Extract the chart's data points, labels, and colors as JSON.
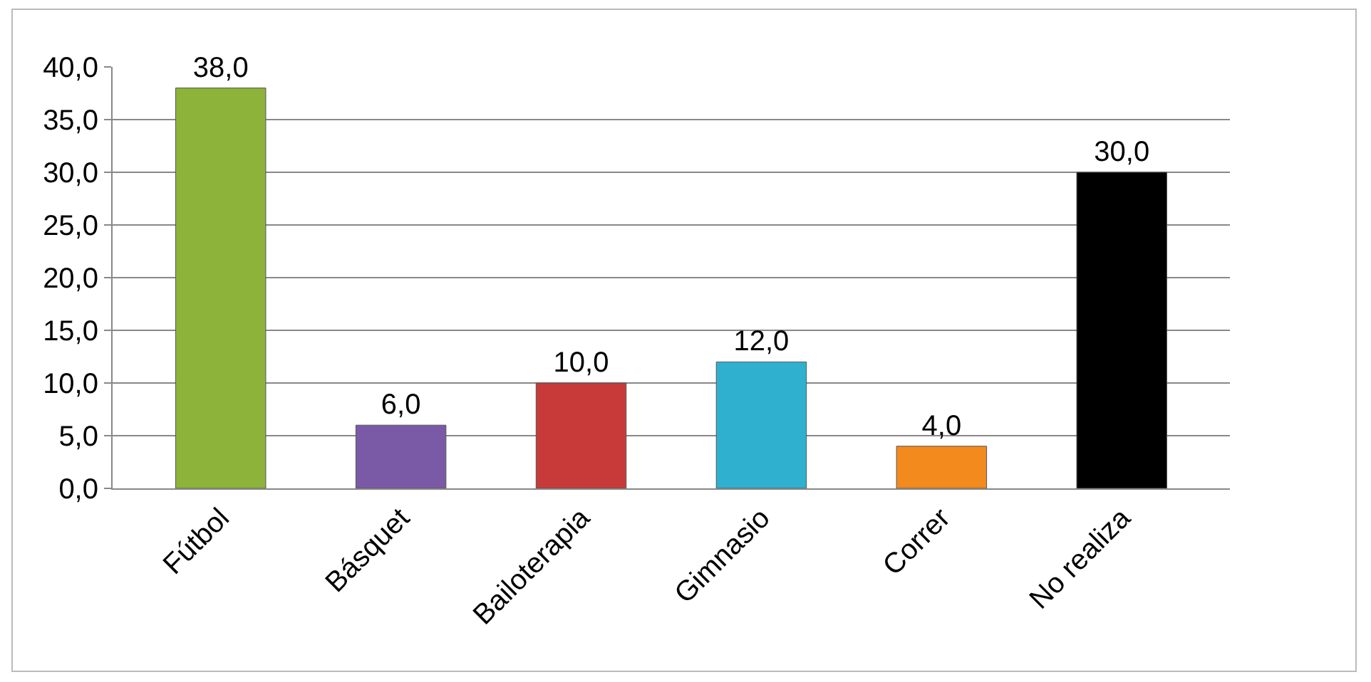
{
  "chart_data": {
    "type": "bar",
    "categories": [
      "Fútbol",
      "Básquet",
      "Bailoterapia",
      "Gimnasio",
      "Correr",
      "No realiza"
    ],
    "values": [
      38,
      6,
      10,
      12,
      4,
      30
    ],
    "colors": [
      "#8db33a",
      "#7a5aa6",
      "#c83a3a",
      "#2fb0cf",
      "#f28a1e",
      "#000000"
    ],
    "value_labels": [
      "38,0",
      "6,0",
      "10,0",
      "12,0",
      "4,0",
      "30,0"
    ],
    "ylim": [
      0,
      40
    ],
    "yticks": [
      {
        "value": 0,
        "label": "0,0"
      },
      {
        "value": 5,
        "label": "5,0"
      },
      {
        "value": 10,
        "label": "10,0"
      },
      {
        "value": 15,
        "label": "15,0"
      },
      {
        "value": 20,
        "label": "20,0"
      },
      {
        "value": 25,
        "label": "25,0"
      },
      {
        "value": 30,
        "label": "30,0"
      },
      {
        "value": 35,
        "label": "35,0"
      },
      {
        "value": 40,
        "label": "40,0"
      }
    ],
    "grid": "y"
  }
}
